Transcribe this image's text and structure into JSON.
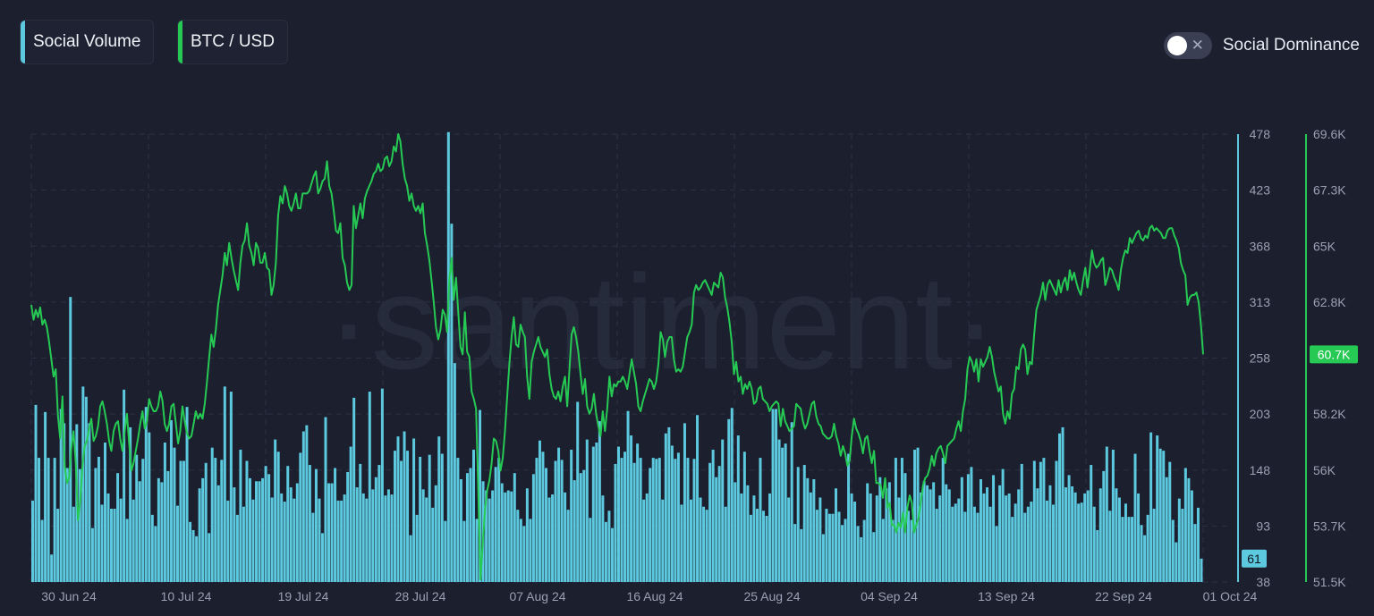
{
  "legend": {
    "items": [
      {
        "label": "Social Volume",
        "color": "#5cc9df"
      },
      {
        "label": "BTC / USD",
        "color": "#26c953"
      }
    ]
  },
  "toggle": {
    "label": "Social Dominance",
    "state": "off"
  },
  "watermark": "·santiment·",
  "chart_data": {
    "type": "bar+line",
    "x_ticks": [
      "30 Jun 24",
      "10 Jul 24",
      "19 Jul 24",
      "28 Jul 24",
      "07 Aug 24",
      "16 Aug 24",
      "25 Aug 24",
      "04 Sep 24",
      "13 Sep 24",
      "22 Sep 24",
      "01 Oct 24"
    ],
    "x_range": [
      "2024-06-30",
      "2024-10-01"
    ],
    "left_axis": {
      "ticks": [
        "478",
        "423",
        "368",
        "313",
        "258",
        "203",
        "148",
        "93",
        "38"
      ],
      "ylim": [
        38,
        478
      ]
    },
    "right_axis": {
      "ticks": [
        "69.6K",
        "67.3K",
        "65K",
        "62.8K",
        "60.7K",
        "58.2K",
        "56K",
        "53.7K",
        "51.5K"
      ],
      "ylim": [
        51500,
        69600
      ]
    },
    "series": [
      {
        "name": "Social Volume",
        "type": "bar",
        "color": "#5cc9df",
        "current_label": "61",
        "values": [
          118,
          212,
          160,
          99,
          205,
          160,
          65,
          160,
          110,
          208,
          194,
          150,
          318,
          112,
          193,
          149,
          230,
          220,
          194,
          91,
          150,
          161,
          114,
          175,
          125,
          110,
          110,
          145,
          120,
          227,
          100,
          190,
          119,
          163,
          137,
          159,
          210,
          185,
          104,
          93,
          140,
          136,
          175,
          147,
          197,
          170,
          113,
          157,
          157,
          210,
          97,
          89,
          83,
          130,
          140,
          155,
          86,
          170,
          160,
          133,
          158,
          230,
          118,
          225,
          131,
          104,
          168,
          112,
          157,
          140,
          119,
          137,
          137,
          140,
          152,
          144,
          121,
          178,
          166,
          125,
          117,
          152,
          131,
          120,
          135,
          165,
          186,
          192,
          153,
          106,
          149,
          120,
          86,
          200,
          135,
          135,
          150,
          118,
          118,
          124,
          146,
          171,
          219,
          131,
          154,
          125,
          120,
          225,
          129,
          141,
          153,
          228,
          123,
          129,
          124,
          167,
          181,
          157,
          186,
          167,
          84,
          179,
          104,
          161,
          129,
          121,
          163,
          111,
          133,
          181,
          164,
          98,
          480,
          390,
          253,
          160,
          139,
          98,
          145,
          150,
          168,
          100,
          207,
          137,
          128,
          120,
          128,
          151,
          160,
          135,
          126,
          128,
          127,
          145,
          109,
          100,
          93,
          130,
          100,
          144,
          160,
          177,
          166,
          150,
          121,
          124,
          157,
          170,
          158,
          126,
          109,
          168,
          138,
          215,
          145,
          148,
          178,
          101,
          171,
          175,
          196,
          123,
          97,
          108,
          91,
          154,
          171,
          160,
          166,
          206,
          182,
          155,
          174,
          160,
          119,
          125,
          150,
          160,
          159,
          160,
          119,
          184,
          190,
          172,
          159,
          165,
          114,
          194,
          160,
          119,
          159,
          202,
          121,
          112,
          109,
          155,
          168,
          141,
          152,
          178,
          112,
          198,
          209,
          136,
          182,
          125,
          166,
          133,
          104,
          123,
          110,
          160,
          108,
          103,
          125,
          208,
          208,
          178,
          170,
          174,
          121,
          195,
          95,
          151,
          90,
          153,
          140,
          126,
          139,
          109,
          121,
          85,
          110,
          105,
          105,
          130,
          107,
          94,
          100,
          164,
          125,
          117,
          93,
          82,
          99,
          135,
          125,
          87,
          123,
          141,
          100,
          130,
          136,
          99,
          160,
          121,
          160,
          145,
          108,
          99,
          168,
          170,
          126,
          137,
          133,
          129,
          136,
          110,
          123,
          160,
          134,
          129,
          112,
          115,
          120,
          141,
          107,
          144,
          151,
          112,
          106,
          139,
          125,
          131,
          112,
          143,
          93,
          133,
          149,
          123,
          125,
          102,
          115,
          129,
          154,
          106,
          112,
          117,
          157,
          130,
          156,
          160,
          118,
          133,
          114,
          157,
          184,
          190,
          131,
          143,
          132,
          126,
          115,
          116,
          125,
          128,
          153,
          112,
          89,
          130,
          147,
          171,
          108,
          168,
          130,
          121,
          102,
          115,
          102,
          102,
          164,
          125,
          94,
          84,
          104,
          185,
          110,
          182,
          169,
          167,
          141,
          156,
          99,
          77,
          120,
          110,
          150,
          140,
          128,
          95,
          111,
          61
        ]
      },
      {
        "name": "BTC / USD",
        "type": "line",
        "color": "#26c953",
        "current_label": "60.7K",
        "values": [
          62700,
          62100,
          62500,
          62200,
          62600,
          61900,
          62100,
          61800,
          61200,
          60500,
          59800,
          60100,
          58200,
          57300,
          59000,
          56200,
          55500,
          55700,
          56900,
          57600,
          56300,
          54000,
          54800,
          56200,
          57000,
          57200,
          57700,
          58100,
          57200,
          57400,
          57800,
          58600,
          58800,
          58400,
          57900,
          57200,
          56800,
          57600,
          57900,
          58000,
          57300,
          56800,
          57600,
          58300,
          57100,
          56000,
          56300,
          56800,
          57300,
          57900,
          58400,
          57700,
          58000,
          58900,
          58600,
          58400,
          58400,
          58600,
          59200,
          58800,
          57900,
          57600,
          57900,
          58600,
          58700,
          57900,
          57100,
          57600,
          58600,
          58000,
          57500,
          57300,
          57400,
          57900,
          58400,
          58100,
          58300,
          58100,
          58700,
          59600,
          60600,
          61500,
          61000,
          61700,
          62700,
          63300,
          63900,
          64800,
          64300,
          65200,
          64600,
          64100,
          63700,
          63300,
          64400,
          65100,
          65300,
          66000,
          65100,
          64800,
          64300,
          65200,
          65000,
          64400,
          64400,
          64800,
          64200,
          64100,
          63100,
          63500,
          64400,
          66300,
          67100,
          66800,
          67500,
          67200,
          66700,
          66500,
          66800,
          67200,
          66600,
          66600,
          67200,
          67200,
          67200,
          67300,
          67600,
          67900,
          68100,
          67200,
          67400,
          67700,
          67800,
          68500,
          67500,
          67200,
          66500,
          65700,
          65600,
          66000,
          64600,
          64300,
          63600,
          63300,
          63500,
          66700,
          65800,
          66300,
          66800,
          66200,
          67000,
          67300,
          67500,
          67700,
          68000,
          68100,
          68400,
          68100,
          68200,
          68600,
          68700,
          68300,
          68500,
          69100,
          68900,
          69600,
          69300,
          68400,
          67800,
          67500,
          66900,
          67200,
          66700,
          66500,
          66700,
          66400,
          66800,
          65600,
          65100,
          64500,
          63700,
          62800,
          61800,
          61300,
          61700,
          62500,
          62300,
          61600,
          63700,
          64600,
          62900,
          63800,
          62400,
          61000,
          60700,
          62400,
          60800,
          60600,
          59200,
          58900,
          58500,
          55300,
          51600,
          53000,
          54400,
          55200,
          55600,
          56300,
          57300,
          57200,
          56800,
          56000,
          56500,
          57600,
          59000,
          60300,
          61400,
          62200,
          61100,
          61000,
          61900,
          61600,
          61400,
          59800,
          58900,
          60400,
          60800,
          61100,
          61400,
          61000,
          60800,
          60600,
          60900,
          59900,
          59300,
          59000,
          58900,
          59200,
          58800,
          59400,
          59800,
          58600,
          60100,
          61500,
          61800,
          61400,
          60800,
          59900,
          59100,
          59700,
          58600,
          58300,
          58500,
          59100,
          58300,
          57800,
          57400,
          58400,
          57600,
          58500,
          59800,
          59000,
          59500,
          59400,
          59600,
          59600,
          59800,
          59600,
          59300,
          59900,
          60500,
          60000,
          59500,
          58600,
          58400,
          58800,
          59100,
          59400,
          59700,
          59600,
          59300,
          59600,
          60300,
          61600,
          61300,
          60600,
          61200,
          61400,
          61400,
          60500,
          60000,
          60100,
          60000,
          60200,
          60800,
          61400,
          61600,
          61900,
          63200,
          63500,
          63300,
          63400,
          63600,
          63700,
          63500,
          63300,
          63100,
          63600,
          63500,
          63400,
          64000,
          63800,
          63000,
          62600,
          62000,
          61200,
          59900,
          60400,
          59600,
          59800,
          59100,
          59500,
          59300,
          59600,
          59300,
          58700,
          58800,
          59300,
          59400,
          58900,
          58800,
          58700,
          58400,
          58600,
          58700,
          58800,
          58700,
          57800,
          58500,
          58000,
          57800,
          57600,
          57700,
          57800,
          58700,
          58600,
          58500,
          58000,
          57700,
          57900,
          58300,
          58700,
          58800,
          58200,
          57900,
          57800,
          57500,
          57400,
          57300,
          57300,
          57400,
          57900,
          57400,
          57100,
          56600,
          57000,
          56700,
          56200,
          56400,
          57400,
          58100,
          57700,
          57500,
          57200,
          56700,
          57300,
          57400,
          56800,
          56300,
          56800,
          55500,
          55500,
          55400,
          54900,
          55700,
          54500,
          54700,
          53800,
          53800,
          53500,
          53900,
          53700,
          54300,
          53500,
          54500,
          55000,
          54700,
          53500,
          53800,
          54100,
          54700,
          55400,
          55700,
          55800,
          56100,
          56600,
          56200,
          56700,
          56900,
          57000,
          56700,
          56300,
          57000,
          57100,
          57200,
          57300,
          57700,
          58000,
          57600,
          58400,
          58900,
          60100,
          60600,
          60400,
          60000,
          60500,
          59600,
          60500,
          60200,
          60400,
          60600,
          61000,
          60600,
          60000,
          59600,
          59200,
          59400,
          58300,
          57900,
          58400,
          58100,
          59100,
          59300,
          60200,
          60100,
          60900,
          61100,
          60900,
          59900,
          60400,
          60300,
          61500,
          62500,
          62800,
          63100,
          63600,
          62900,
          63500,
          63700,
          63500,
          63300,
          63100,
          63700,
          63200,
          63600,
          63800,
          63300,
          64100,
          63700,
          64000,
          63600,
          63300,
          63100,
          63700,
          64200,
          63400,
          64100,
          64900,
          64400,
          64200,
          64300,
          64500,
          64600,
          63500,
          63800,
          64200,
          64100,
          63800,
          63600,
          63300,
          64100,
          64600,
          64900,
          64800,
          65400,
          65200,
          65400,
          65600,
          65700,
          65400,
          65300,
          65500,
          65400,
          65800,
          65900,
          65700,
          65800,
          65700,
          65600,
          65400,
          65400,
          65700,
          65800,
          65800,
          65500,
          65300,
          65000,
          64400,
          64100,
          63900,
          62700,
          63000,
          63100,
          63100,
          63200,
          62800,
          61900,
          60700
        ]
      }
    ]
  }
}
